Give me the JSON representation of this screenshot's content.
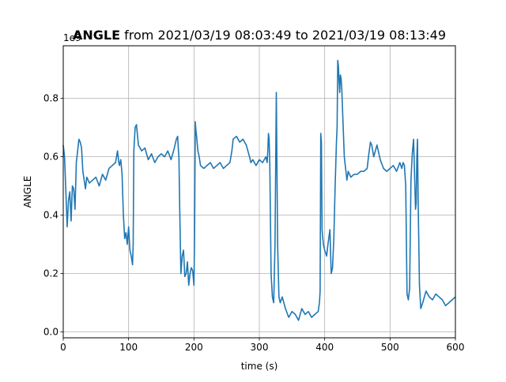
{
  "chart_data": {
    "type": "line",
    "title_bold": "ANGLE",
    "title_rest": " from 2021/03/19 08:03:49 to 2021/03/19 08:13:49",
    "xlabel": "time (s)",
    "ylabel": "ANGLE",
    "offset_text": "1e9",
    "xlim": [
      0,
      600
    ],
    "ylim": [
      -0.02,
      0.98
    ],
    "xticks": [
      0,
      100,
      200,
      300,
      400,
      500,
      600
    ],
    "yticks": [
      0.0,
      0.2,
      0.4,
      0.6,
      0.8
    ],
    "ytick_labels": [
      "0.0",
      "0.2",
      "0.4",
      "0.6",
      "0.8"
    ],
    "grid": true,
    "series": [
      {
        "color": "#1f77b4",
        "x": [
          0,
          2,
          4,
          6,
          8,
          10,
          12,
          14,
          16,
          18,
          20,
          22,
          24,
          26,
          28,
          30,
          32,
          34,
          36,
          40,
          45,
          50,
          55,
          60,
          65,
          70,
          75,
          80,
          83,
          85,
          86,
          88,
          90,
          92,
          94,
          96,
          98,
          100,
          102,
          104,
          106,
          107,
          108,
          110,
          112,
          115,
          120,
          125,
          130,
          135,
          140,
          145,
          150,
          155,
          160,
          165,
          170,
          173,
          175,
          176,
          177,
          178,
          179,
          180,
          182,
          184,
          186,
          188,
          190,
          192,
          194,
          196,
          198,
          200,
          201,
          202,
          203,
          204,
          206,
          208,
          210,
          215,
          220,
          225,
          230,
          235,
          240,
          245,
          250,
          255,
          258,
          260,
          265,
          270,
          275,
          280,
          285,
          287,
          290,
          295,
          300,
          305,
          310,
          312,
          313,
          314,
          315,
          316,
          318,
          320,
          322,
          324,
          326,
          328,
          330,
          332,
          335,
          340,
          345,
          350,
          355,
          360,
          365,
          370,
          375,
          380,
          385,
          390,
          392,
          393,
          394,
          395,
          396,
          398,
          400,
          403,
          405,
          408,
          410,
          412,
          414,
          416,
          418,
          419,
          420,
          421,
          422,
          423,
          424,
          425,
          426,
          428,
          430,
          432,
          434,
          436,
          440,
          445,
          450,
          455,
          460,
          465,
          467,
          470,
          472,
          475,
          480,
          485,
          490,
          495,
          500,
          505,
          510,
          515,
          518,
          520,
          522,
          524,
          526,
          528,
          530,
          532,
          534,
          536,
          538,
          539,
          540,
          541,
          542,
          543,
          545,
          547,
          550,
          555,
          560,
          565,
          570,
          575,
          580,
          585,
          590,
          595,
          600
        ],
        "y": [
          0.64,
          0.6,
          0.48,
          0.36,
          0.45,
          0.48,
          0.38,
          0.5,
          0.49,
          0.42,
          0.58,
          0.62,
          0.66,
          0.65,
          0.63,
          0.55,
          0.52,
          0.49,
          0.53,
          0.51,
          0.52,
          0.53,
          0.5,
          0.54,
          0.52,
          0.56,
          0.57,
          0.58,
          0.62,
          0.58,
          0.57,
          0.59,
          0.54,
          0.4,
          0.32,
          0.34,
          0.3,
          0.36,
          0.28,
          0.26,
          0.23,
          0.3,
          0.62,
          0.7,
          0.71,
          0.64,
          0.62,
          0.63,
          0.59,
          0.61,
          0.58,
          0.6,
          0.61,
          0.6,
          0.62,
          0.59,
          0.63,
          0.66,
          0.67,
          0.63,
          0.6,
          0.45,
          0.32,
          0.2,
          0.26,
          0.28,
          0.19,
          0.2,
          0.24,
          0.16,
          0.2,
          0.22,
          0.21,
          0.16,
          0.35,
          0.72,
          0.69,
          0.67,
          0.62,
          0.6,
          0.57,
          0.56,
          0.57,
          0.58,
          0.56,
          0.57,
          0.58,
          0.56,
          0.57,
          0.58,
          0.62,
          0.66,
          0.67,
          0.65,
          0.66,
          0.64,
          0.6,
          0.58,
          0.59,
          0.57,
          0.59,
          0.58,
          0.6,
          0.58,
          0.62,
          0.68,
          0.66,
          0.58,
          0.2,
          0.12,
          0.1,
          0.3,
          0.82,
          0.3,
          0.12,
          0.1,
          0.12,
          0.08,
          0.05,
          0.07,
          0.06,
          0.04,
          0.08,
          0.06,
          0.07,
          0.05,
          0.06,
          0.07,
          0.1,
          0.14,
          0.68,
          0.65,
          0.35,
          0.3,
          0.28,
          0.26,
          0.3,
          0.35,
          0.2,
          0.22,
          0.32,
          0.5,
          0.65,
          0.7,
          0.93,
          0.91,
          0.86,
          0.82,
          0.88,
          0.87,
          0.84,
          0.72,
          0.6,
          0.56,
          0.52,
          0.55,
          0.53,
          0.54,
          0.54,
          0.55,
          0.55,
          0.56,
          0.6,
          0.65,
          0.64,
          0.6,
          0.64,
          0.59,
          0.56,
          0.55,
          0.56,
          0.57,
          0.55,
          0.58,
          0.56,
          0.58,
          0.57,
          0.5,
          0.13,
          0.11,
          0.15,
          0.52,
          0.61,
          0.66,
          0.5,
          0.42,
          0.44,
          0.6,
          0.66,
          0.45,
          0.16,
          0.08,
          0.1,
          0.14,
          0.12,
          0.11,
          0.13,
          0.12,
          0.11,
          0.09,
          0.1,
          0.11,
          0.12
        ]
      }
    ]
  }
}
